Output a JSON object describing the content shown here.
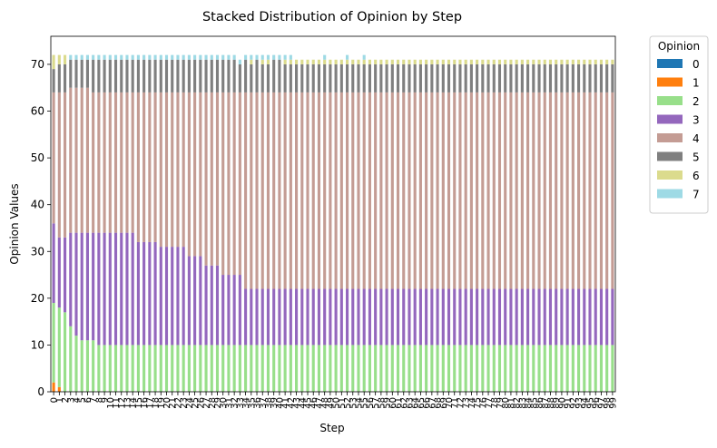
{
  "chart_data": {
    "type": "bar",
    "stacked": true,
    "title": "Stacked Distribution of Opinion by Step",
    "xlabel": "Step",
    "ylabel": "Opinion Values",
    "ylim": [
      0,
      76
    ],
    "yticks": [
      0,
      10,
      20,
      30,
      40,
      50,
      60,
      70
    ],
    "categories": [
      "0",
      "1",
      "2",
      "3",
      "4",
      "5",
      "6",
      "7",
      "8",
      "9",
      "10",
      "11",
      "12",
      "13",
      "14",
      "15",
      "16",
      "17",
      "18",
      "19",
      "20",
      "21",
      "22",
      "23",
      "24",
      "25",
      "26",
      "27",
      "28",
      "29",
      "30",
      "31",
      "32",
      "33",
      "34",
      "35",
      "36",
      "37",
      "38",
      "39",
      "40",
      "41",
      "42",
      "43",
      "44",
      "45",
      "46",
      "47",
      "48",
      "49",
      "50",
      "51",
      "52",
      "53",
      "54",
      "55",
      "56",
      "57",
      "58",
      "59",
      "60",
      "61",
      "62",
      "63",
      "64",
      "65",
      "66",
      "67",
      "68",
      "69",
      "70",
      "71",
      "72",
      "73",
      "74",
      "75",
      "76",
      "77",
      "78",
      "79",
      "80",
      "81",
      "82",
      "83",
      "84",
      "85",
      "86",
      "87",
      "88",
      "89",
      "90",
      "91",
      "92",
      "93",
      "94",
      "95",
      "96",
      "97",
      "98",
      "99"
    ],
    "legend": {
      "title": "Opinion",
      "position": "outside-right"
    },
    "series": [
      {
        "name": "0",
        "color": "#1f77b4",
        "values": [
          0,
          0,
          0,
          0,
          0,
          0,
          0,
          0,
          0,
          0,
          0,
          0,
          0,
          0,
          0,
          0,
          0,
          0,
          0,
          0,
          0,
          0,
          0,
          0,
          0,
          0,
          0,
          0,
          0,
          0,
          0,
          0,
          0,
          0,
          0,
          0,
          0,
          0,
          0,
          0,
          0,
          0,
          0,
          0,
          0,
          0,
          0,
          0,
          0,
          0,
          0,
          0,
          0,
          0,
          0,
          0,
          0,
          0,
          0,
          0,
          0,
          0,
          0,
          0,
          0,
          0,
          0,
          0,
          0,
          0,
          0,
          0,
          0,
          0,
          0,
          0,
          0,
          0,
          0,
          0,
          0,
          0,
          0,
          0,
          0,
          0,
          0,
          0,
          0,
          0,
          0,
          0,
          0,
          0,
          0,
          0,
          0,
          0,
          0,
          0
        ]
      },
      {
        "name": "1",
        "color": "#ff7f0e",
        "values": [
          2,
          1,
          0,
          0,
          0,
          0,
          0,
          0,
          0,
          0,
          0,
          0,
          0,
          0,
          0,
          0,
          0,
          0,
          0,
          0,
          0,
          0,
          0,
          0,
          0,
          0,
          0,
          0,
          0,
          0,
          0,
          0,
          0,
          0,
          0,
          0,
          0,
          0,
          0,
          0,
          0,
          0,
          0,
          0,
          0,
          0,
          0,
          0,
          0,
          0,
          0,
          0,
          0,
          0,
          0,
          0,
          0,
          0,
          0,
          0,
          0,
          0,
          0,
          0,
          0,
          0,
          0,
          0,
          0,
          0,
          0,
          0,
          0,
          0,
          0,
          0,
          0,
          0,
          0,
          0,
          0,
          0,
          0,
          0,
          0,
          0,
          0,
          0,
          0,
          0,
          0,
          0,
          0,
          0,
          0,
          0,
          0,
          0,
          0,
          0
        ]
      },
      {
        "name": "2",
        "color": "#98df8a",
        "values": [
          17,
          17,
          17,
          14,
          12,
          11,
          11,
          11,
          10,
          10,
          10,
          10,
          10,
          10,
          10,
          10,
          10,
          10,
          10,
          10,
          10,
          10,
          10,
          10,
          10,
          10,
          10,
          10,
          10,
          10,
          10,
          10,
          10,
          10,
          10,
          10,
          10,
          10,
          10,
          10,
          10,
          10,
          10,
          10,
          10,
          10,
          10,
          10,
          10,
          10,
          10,
          10,
          10,
          10,
          10,
          10,
          10,
          10,
          10,
          10,
          10,
          10,
          10,
          10,
          10,
          10,
          10,
          10,
          10,
          10,
          10,
          10,
          10,
          10,
          10,
          10,
          10,
          10,
          10,
          10,
          10,
          10,
          10,
          10,
          10,
          10,
          10,
          10,
          10,
          10,
          10,
          10,
          10,
          10,
          10,
          10,
          10,
          10,
          10,
          10
        ]
      },
      {
        "name": "3",
        "color": "#9467bd",
        "values": [
          17,
          15,
          16,
          20,
          22,
          23,
          23,
          23,
          24,
          24,
          24,
          24,
          24,
          24,
          24,
          22,
          22,
          22,
          22,
          21,
          21,
          21,
          21,
          21,
          19,
          19,
          19,
          17,
          17,
          17,
          15,
          15,
          15,
          15,
          12,
          12,
          12,
          12,
          12,
          12,
          12,
          12,
          12,
          12,
          12,
          12,
          12,
          12,
          12,
          12,
          12,
          12,
          12,
          12,
          12,
          12,
          12,
          12,
          12,
          12,
          12,
          12,
          12,
          12,
          12,
          12,
          12,
          12,
          12,
          12,
          12,
          12,
          12,
          12,
          12,
          12,
          12,
          12,
          12,
          12,
          12,
          12,
          12,
          12,
          12,
          12,
          12,
          12,
          12,
          12,
          12,
          12,
          12,
          12,
          12,
          12,
          12,
          12,
          12,
          12
        ]
      },
      {
        "name": "4",
        "color": "#c49c94",
        "values": [
          28,
          31,
          31,
          31,
          31,
          31,
          31,
          30,
          30,
          30,
          30,
          30,
          30,
          30,
          30,
          32,
          32,
          32,
          32,
          33,
          33,
          33,
          33,
          33,
          35,
          35,
          35,
          37,
          37,
          37,
          39,
          39,
          39,
          39,
          42,
          42,
          42,
          42,
          42,
          42,
          42,
          42,
          42,
          42,
          42,
          42,
          42,
          42,
          42,
          42,
          42,
          42,
          42,
          42,
          42,
          42,
          42,
          42,
          42,
          42,
          42,
          42,
          42,
          42,
          42,
          42,
          42,
          42,
          42,
          42,
          42,
          42,
          42,
          42,
          42,
          42,
          42,
          42,
          42,
          42,
          42,
          42,
          42,
          42,
          42,
          42,
          42,
          42,
          42,
          42,
          42,
          42,
          42,
          42,
          42,
          42,
          42,
          42,
          42,
          42
        ]
      },
      {
        "name": "5",
        "color": "#7f7f7f",
        "values": [
          5,
          6,
          6,
          6,
          6,
          6,
          6,
          7,
          7,
          7,
          7,
          7,
          7,
          7,
          7,
          7,
          7,
          7,
          7,
          7,
          7,
          7,
          7,
          7,
          7,
          7,
          7,
          7,
          7,
          7,
          7,
          7,
          7,
          6,
          7,
          6,
          7,
          6,
          6,
          7,
          7,
          6,
          6,
          6,
          6,
          6,
          6,
          6,
          6,
          6,
          6,
          6,
          6,
          6,
          6,
          6,
          6,
          6,
          6,
          6,
          6,
          6,
          6,
          6,
          6,
          6,
          6,
          6,
          6,
          6,
          6,
          6,
          6,
          6,
          6,
          6,
          6,
          6,
          6,
          6,
          6,
          6,
          6,
          6,
          6,
          6,
          6,
          6,
          6,
          6,
          6,
          6,
          6,
          6,
          6,
          6,
          6,
          6,
          6,
          6
        ]
      },
      {
        "name": "6",
        "color": "#dbdb8d",
        "values": [
          3,
          2,
          2,
          0,
          0,
          0,
          0,
          0,
          0,
          0,
          0,
          0,
          0,
          0,
          0,
          0,
          0,
          0,
          0,
          0,
          0,
          0,
          0,
          0,
          0,
          0,
          0,
          0,
          0,
          0,
          0,
          0,
          0,
          0,
          0,
          1,
          0,
          1,
          1,
          0,
          0,
          1,
          1,
          1,
          1,
          1,
          1,
          1,
          1,
          1,
          1,
          1,
          1,
          1,
          1,
          1,
          1,
          1,
          1,
          1,
          1,
          1,
          1,
          1,
          1,
          1,
          1,
          1,
          1,
          1,
          1,
          1,
          1,
          1,
          1,
          1,
          1,
          1,
          1,
          1,
          1,
          1,
          1,
          1,
          1,
          1,
          1,
          1,
          1,
          1,
          1,
          1,
          1,
          1,
          1,
          1,
          1,
          1,
          1,
          1
        ]
      },
      {
        "name": "7",
        "color": "#9edae5",
        "values": [
          0,
          0,
          0,
          1,
          1,
          1,
          1,
          1,
          1,
          1,
          1,
          1,
          1,
          1,
          1,
          1,
          1,
          1,
          1,
          1,
          1,
          1,
          1,
          1,
          1,
          1,
          1,
          1,
          1,
          1,
          1,
          1,
          1,
          1,
          1,
          1,
          1,
          1,
          1,
          1,
          1,
          1,
          1,
          0,
          0,
          0,
          0,
          0,
          1,
          0,
          0,
          0,
          1,
          0,
          0,
          1,
          0,
          0,
          0,
          0,
          0,
          0,
          0,
          0,
          0,
          0,
          0,
          0,
          0,
          0,
          0,
          0,
          0,
          0,
          0,
          0,
          0,
          0,
          0,
          0,
          0,
          0,
          0,
          0,
          0,
          0,
          0,
          0,
          0,
          0,
          0,
          0,
          0,
          0,
          0,
          0,
          0,
          0,
          0,
          0
        ]
      }
    ]
  }
}
